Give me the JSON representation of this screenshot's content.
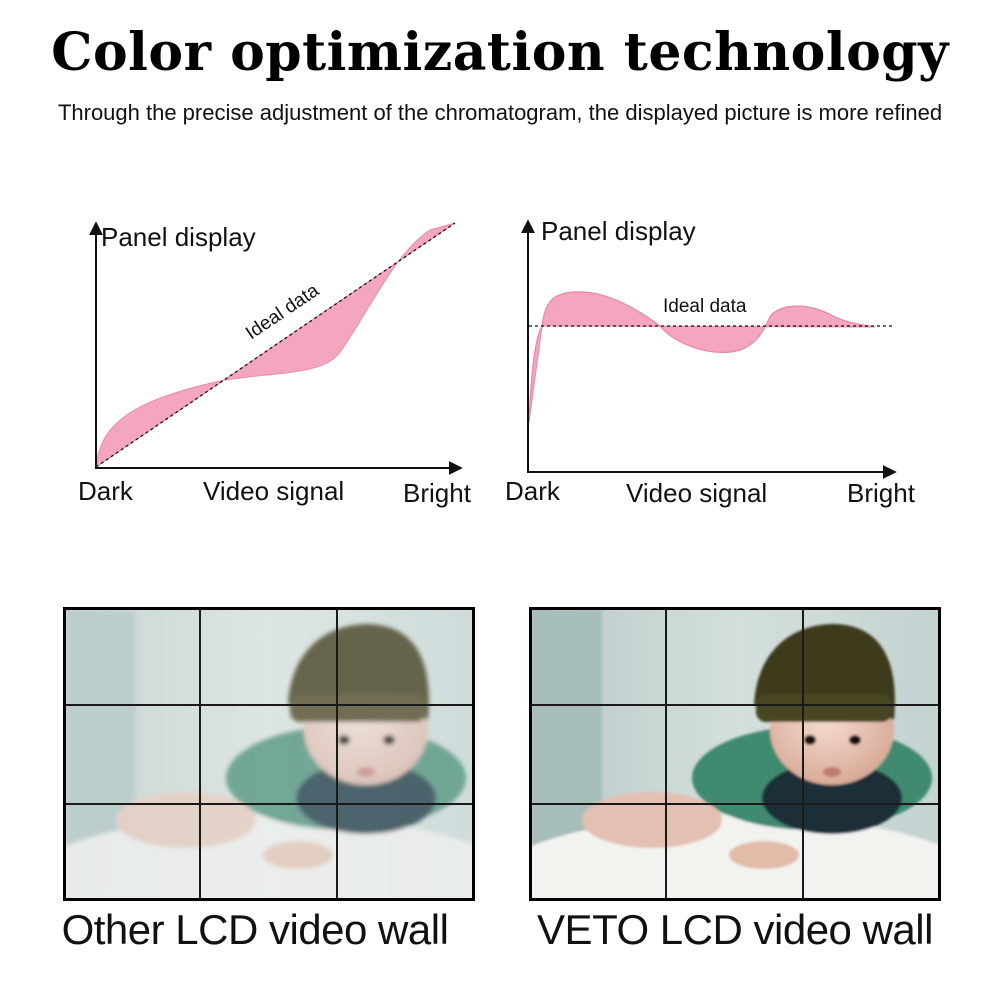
{
  "header": {
    "title": "Color optimization technology",
    "subtitle": "Through the precise adjustment of the chromatogram, the displayed picture is more refined"
  },
  "diagrams": [
    {
      "y_axis_label": "Panel display",
      "ideal_label": "Ideal data",
      "x_left": "Dark",
      "x_center": "Video signal",
      "x_right": "Bright"
    },
    {
      "y_axis_label": "Panel display",
      "ideal_label": "Ideal data",
      "x_left": "Dark",
      "x_center": "Video signal",
      "x_right": "Bright"
    }
  ],
  "comparison": {
    "left_caption": "Other LCD video wall",
    "right_caption": "VETO LCD video wall"
  },
  "colors": {
    "curve_fill": "#f4a6bf",
    "curve_stroke": "#e88aa8",
    "axis": "#111111"
  }
}
